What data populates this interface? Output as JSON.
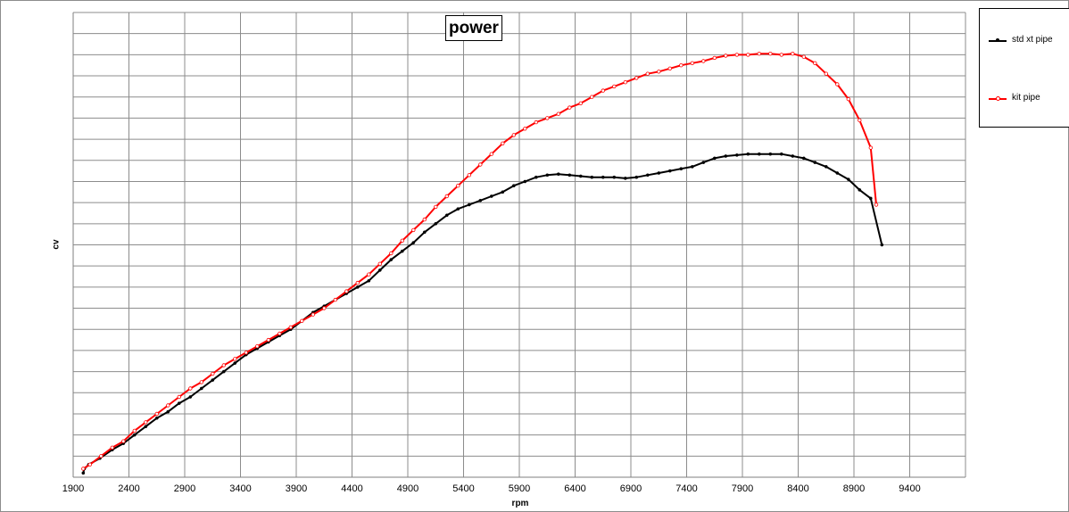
{
  "chart_data": {
    "type": "line",
    "title": "power",
    "xlabel": "rpm",
    "ylabel": "cv",
    "xlim": [
      1900,
      9900
    ],
    "xticks": [
      1900,
      2400,
      2900,
      3400,
      3900,
      4400,
      4900,
      5400,
      5900,
      6400,
      6900,
      7400,
      7900,
      8400,
      8900,
      9400
    ],
    "ylim": [
      0,
      22
    ],
    "grid": true,
    "legend": "right",
    "series": [
      {
        "name": "std xt pipe",
        "color": "#000000",
        "marker": "filled-dot",
        "points": [
          [
            1990,
            0.2
          ],
          [
            2000,
            0.4
          ],
          [
            2040,
            0.6
          ],
          [
            2140,
            0.9
          ],
          [
            2250,
            1.3
          ],
          [
            2350,
            1.6
          ],
          [
            2450,
            2.0
          ],
          [
            2550,
            2.4
          ],
          [
            2650,
            2.8
          ],
          [
            2750,
            3.1
          ],
          [
            2850,
            3.5
          ],
          [
            2950,
            3.8
          ],
          [
            3050,
            4.2
          ],
          [
            3150,
            4.6
          ],
          [
            3250,
            5.0
          ],
          [
            3350,
            5.4
          ],
          [
            3450,
            5.8
          ],
          [
            3550,
            6.1
          ],
          [
            3650,
            6.4
          ],
          [
            3750,
            6.7
          ],
          [
            3850,
            7.0
          ],
          [
            3950,
            7.4
          ],
          [
            4050,
            7.8
          ],
          [
            4150,
            8.1
          ],
          [
            4250,
            8.4
          ],
          [
            4350,
            8.7
          ],
          [
            4450,
            9.0
          ],
          [
            4550,
            9.3
          ],
          [
            4650,
            9.8
          ],
          [
            4750,
            10.3
          ],
          [
            4850,
            10.7
          ],
          [
            4950,
            11.1
          ],
          [
            5050,
            11.6
          ],
          [
            5150,
            12.0
          ],
          [
            5250,
            12.4
          ],
          [
            5350,
            12.7
          ],
          [
            5450,
            12.9
          ],
          [
            5550,
            13.1
          ],
          [
            5650,
            13.3
          ],
          [
            5750,
            13.5
          ],
          [
            5850,
            13.8
          ],
          [
            5950,
            14.0
          ],
          [
            6050,
            14.2
          ],
          [
            6150,
            14.3
          ],
          [
            6250,
            14.35
          ],
          [
            6350,
            14.3
          ],
          [
            6450,
            14.25
          ],
          [
            6550,
            14.2
          ],
          [
            6650,
            14.2
          ],
          [
            6750,
            14.2
          ],
          [
            6850,
            14.15
          ],
          [
            6950,
            14.2
          ],
          [
            7050,
            14.3
          ],
          [
            7150,
            14.4
          ],
          [
            7250,
            14.5
          ],
          [
            7350,
            14.6
          ],
          [
            7450,
            14.7
          ],
          [
            7550,
            14.9
          ],
          [
            7650,
            15.1
          ],
          [
            7750,
            15.2
          ],
          [
            7850,
            15.25
          ],
          [
            7950,
            15.3
          ],
          [
            8050,
            15.3
          ],
          [
            8150,
            15.3
          ],
          [
            8250,
            15.3
          ],
          [
            8350,
            15.2
          ],
          [
            8450,
            15.1
          ],
          [
            8550,
            14.9
          ],
          [
            8650,
            14.7
          ],
          [
            8750,
            14.4
          ],
          [
            8850,
            14.1
          ],
          [
            8950,
            13.6
          ],
          [
            9050,
            13.2
          ],
          [
            9150,
            11.0
          ]
        ]
      },
      {
        "name": "kit pipe",
        "color": "#ff0000",
        "marker": "hollow-dot",
        "points": [
          [
            1990,
            0.4
          ],
          [
            2050,
            0.6
          ],
          [
            2150,
            1.0
          ],
          [
            2250,
            1.4
          ],
          [
            2350,
            1.7
          ],
          [
            2450,
            2.2
          ],
          [
            2550,
            2.6
          ],
          [
            2650,
            3.0
          ],
          [
            2750,
            3.4
          ],
          [
            2850,
            3.8
          ],
          [
            2950,
            4.2
          ],
          [
            3050,
            4.5
          ],
          [
            3150,
            4.9
          ],
          [
            3250,
            5.3
          ],
          [
            3350,
            5.6
          ],
          [
            3450,
            5.9
          ],
          [
            3550,
            6.2
          ],
          [
            3650,
            6.5
          ],
          [
            3750,
            6.8
          ],
          [
            3850,
            7.1
          ],
          [
            3950,
            7.4
          ],
          [
            4050,
            7.7
          ],
          [
            4150,
            8.0
          ],
          [
            4250,
            8.4
          ],
          [
            4350,
            8.8
          ],
          [
            4450,
            9.2
          ],
          [
            4550,
            9.6
          ],
          [
            4650,
            10.1
          ],
          [
            4750,
            10.6
          ],
          [
            4850,
            11.2
          ],
          [
            4950,
            11.7
          ],
          [
            5050,
            12.2
          ],
          [
            5150,
            12.8
          ],
          [
            5250,
            13.3
          ],
          [
            5350,
            13.8
          ],
          [
            5450,
            14.3
          ],
          [
            5550,
            14.8
          ],
          [
            5650,
            15.3
          ],
          [
            5750,
            15.8
          ],
          [
            5850,
            16.2
          ],
          [
            5950,
            16.5
          ],
          [
            6050,
            16.8
          ],
          [
            6150,
            17.0
          ],
          [
            6250,
            17.2
          ],
          [
            6350,
            17.5
          ],
          [
            6450,
            17.7
          ],
          [
            6550,
            18.0
          ],
          [
            6650,
            18.3
          ],
          [
            6750,
            18.5
          ],
          [
            6850,
            18.7
          ],
          [
            6950,
            18.9
          ],
          [
            7050,
            19.1
          ],
          [
            7150,
            19.2
          ],
          [
            7250,
            19.35
          ],
          [
            7350,
            19.5
          ],
          [
            7450,
            19.6
          ],
          [
            7550,
            19.7
          ],
          [
            7650,
            19.85
          ],
          [
            7750,
            19.95
          ],
          [
            7850,
            20.0
          ],
          [
            7950,
            20.0
          ],
          [
            8050,
            20.05
          ],
          [
            8150,
            20.05
          ],
          [
            8250,
            20.0
          ],
          [
            8350,
            20.05
          ],
          [
            8450,
            19.9
          ],
          [
            8550,
            19.6
          ],
          [
            8650,
            19.1
          ],
          [
            8750,
            18.6
          ],
          [
            8850,
            17.9
          ],
          [
            8950,
            16.9
          ],
          [
            9050,
            15.6
          ],
          [
            9100,
            12.9
          ]
        ]
      }
    ]
  }
}
